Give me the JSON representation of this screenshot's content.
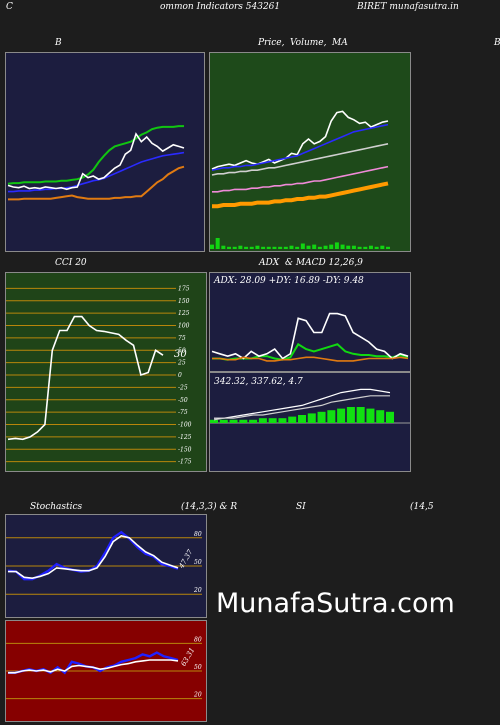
{
  "header": {
    "left": "C",
    "center": "ommon  Indicators 543261",
    "right": "BIRET munafasutra.in"
  },
  "titles": {
    "bb": "B",
    "price_a": "Price,",
    "price_b": "Volume,",
    "price_c": "MA",
    "right_edge": "B",
    "cci": "CCI 20",
    "adx_a": "ADX",
    "adx_b": "& MACD 12,26,9",
    "stoch_a": "Stochastics",
    "stoch_b": "(14,3,3) & R",
    "stoch_c": "SI",
    "stoch_d": "(14,5"
  },
  "readouts": {
    "cci_value": "30",
    "adx_line": "ADX: 28.09  +DY: 16.89  -DY: 9.48",
    "macd_line": "342.32,  337.62,  4.7",
    "stoch_value": "47.37",
    "rsi_value": "63.31"
  },
  "watermark": "MunafaSutra.com",
  "colors": {
    "bb_bg": "#1c1d3f",
    "price_bg": "#1e4a1a",
    "cci_bg": "#1f4418",
    "adx_bg": "#1c1d3f",
    "stoch_bg": "#1c1d3f",
    "rsi_bg": "#860000"
  },
  "chart_data": [
    {
      "type": "line",
      "name": "bollinger",
      "ylim": [
        0,
        100
      ],
      "series": [
        {
          "name": "upper",
          "color": "#11c511",
          "values": [
            22,
            23,
            23,
            24,
            24,
            24,
            24,
            25,
            25,
            25,
            26,
            26,
            27,
            28,
            30,
            34,
            40,
            50,
            58,
            65,
            70,
            72,
            74,
            76,
            80,
            85,
            88,
            92,
            94,
            95,
            95,
            95,
            96,
            96
          ]
        },
        {
          "name": "middle",
          "color": "#2a2aff",
          "values": [
            12,
            12,
            13,
            13,
            13,
            14,
            14,
            15,
            15,
            16,
            16,
            17,
            18,
            20,
            22,
            24,
            26,
            27,
            29,
            32,
            35,
            38,
            41,
            44,
            47,
            50,
            52,
            54,
            56,
            58,
            59,
            60,
            61,
            62
          ]
        },
        {
          "name": "price",
          "color": "#ffffff",
          "values": [
            20,
            18,
            17,
            19,
            16,
            17,
            16,
            18,
            17,
            16,
            17,
            15,
            17,
            18,
            35,
            30,
            32,
            28,
            30,
            36,
            42,
            46,
            60,
            65,
            86,
            76,
            82,
            74,
            70,
            64,
            68,
            72,
            70,
            68
          ]
        },
        {
          "name": "lower",
          "color": "#e07a11",
          "values": [
            2,
            2,
            2,
            3,
            3,
            3,
            3,
            3,
            3,
            4,
            5,
            6,
            7,
            5,
            4,
            3,
            3,
            3,
            3,
            3,
            4,
            4,
            5,
            5,
            6,
            6,
            12,
            18,
            24,
            28,
            34,
            38,
            42,
            44
          ]
        }
      ]
    },
    {
      "type": "line",
      "name": "price_volume_ma",
      "ylim": [
        0,
        100
      ],
      "series": [
        {
          "name": "price",
          "color": "#ffffff",
          "values": [
            45,
            47,
            48,
            49,
            48,
            50,
            52,
            50,
            49,
            51,
            53,
            50,
            52,
            54,
            58,
            57,
            66,
            70,
            66,
            68,
            72,
            85,
            92,
            93,
            88,
            86,
            83,
            84,
            80,
            82,
            84,
            85
          ]
        },
        {
          "name": "ma_fast",
          "color": "#2a2aff",
          "values": [
            44,
            45,
            46,
            46,
            47,
            47,
            48,
            48,
            49,
            50,
            51,
            52,
            53,
            54,
            55,
            56,
            58,
            60,
            62,
            64,
            66,
            68,
            70,
            72,
            74,
            76,
            77,
            78,
            79,
            80,
            81,
            82
          ]
        },
        {
          "name": "ma_mid",
          "color": "#cfcfcf",
          "values": [
            40,
            41,
            41,
            42,
            42,
            43,
            43,
            44,
            44,
            45,
            46,
            46,
            47,
            48,
            49,
            50,
            51,
            52,
            53,
            54,
            55,
            56,
            57,
            58,
            59,
            60,
            61,
            62,
            63,
            64,
            65,
            66
          ]
        },
        {
          "name": "ma_slow",
          "color": "#f08ad8",
          "values": [
            26,
            26,
            27,
            27,
            28,
            28,
            28,
            29,
            29,
            30,
            30,
            31,
            31,
            32,
            32,
            33,
            33,
            34,
            35,
            35,
            36,
            37,
            38,
            39,
            40,
            41,
            42,
            43,
            44,
            45,
            46,
            47
          ]
        },
        {
          "name": "ma_long",
          "color": "#ff9a00",
          "values": [
            14,
            14,
            15,
            15,
            15,
            16,
            16,
            16,
            17,
            17,
            17,
            18,
            18,
            19,
            19,
            20,
            20,
            21,
            21,
            22,
            22,
            23,
            24,
            25,
            26,
            27,
            28,
            29,
            30,
            31,
            32,
            33
          ]
        }
      ],
      "volume": [
        4,
        10,
        3,
        2,
        2,
        3,
        2,
        2,
        3,
        2,
        2,
        2,
        2,
        2,
        3,
        2,
        5,
        3,
        4,
        2,
        3,
        4,
        6,
        4,
        3,
        3,
        2,
        2,
        3,
        2,
        3,
        2
      ]
    },
    {
      "type": "line",
      "name": "cci",
      "ylim": [
        -200,
        200
      ],
      "yticks": [
        175,
        150,
        125,
        100,
        75,
        50,
        25,
        0,
        -25,
        -50,
        -75,
        -100,
        -125,
        -150,
        -175
      ],
      "values": [
        -130,
        -128,
        -130,
        -125,
        -115,
        -100,
        50,
        90,
        90,
        118,
        118,
        100,
        90,
        88,
        85,
        82,
        70,
        60,
        0,
        5,
        50,
        40
      ]
    },
    {
      "type": "line",
      "name": "adx",
      "ylim": [
        0,
        60
      ],
      "series": [
        {
          "name": "adx",
          "color": "#11d911",
          "values": [
            8,
            8,
            7,
            8,
            8,
            8,
            10,
            10,
            8,
            7,
            9,
            20,
            16,
            14,
            16,
            18,
            20,
            14,
            12,
            11,
            11,
            10,
            10,
            9,
            11,
            9
          ]
        },
        {
          "name": "plus_di",
          "color": "#ffffff",
          "values": [
            14,
            12,
            10,
            12,
            8,
            14,
            10,
            12,
            16,
            8,
            12,
            42,
            40,
            30,
            30,
            46,
            46,
            44,
            30,
            26,
            22,
            16,
            14,
            8,
            12,
            10
          ]
        },
        {
          "name": "minus_di",
          "color": "#e07a11",
          "values": [
            8,
            8,
            7,
            7,
            9,
            8,
            8,
            6,
            6,
            7,
            7,
            8,
            9,
            9,
            8,
            7,
            6,
            6,
            6,
            7,
            8,
            8,
            8,
            8,
            9,
            8
          ]
        }
      ]
    },
    {
      "type": "bar",
      "name": "macd",
      "ylim": [
        -10,
        40
      ],
      "macd": [
        3,
        3,
        4,
        5,
        6,
        7,
        8,
        9,
        10,
        11,
        13,
        15,
        17,
        19,
        20,
        21,
        21,
        20,
        19
      ],
      "signal": [
        2,
        3,
        3,
        4,
        5,
        5,
        6,
        7,
        8,
        9,
        10,
        11,
        13,
        14,
        15,
        16,
        17,
        17,
        17
      ],
      "histogram": [
        2,
        2,
        2,
        2,
        2,
        3,
        3,
        3,
        4,
        5,
        6,
        7,
        8,
        9,
        10,
        10,
        9,
        8,
        7
      ]
    },
    {
      "type": "line",
      "name": "stochastics",
      "ylim": [
        0,
        100
      ],
      "yticks": [
        80,
        50,
        20
      ],
      "series": [
        {
          "name": "k",
          "color": "#2020ff",
          "values": [
            45,
            44,
            36,
            36,
            40,
            45,
            52,
            48,
            46,
            44,
            45,
            50,
            64,
            80,
            86,
            79,
            70,
            63,
            60,
            52,
            50,
            47
          ]
        },
        {
          "name": "d",
          "color": "#ffffff",
          "values": [
            44,
            44,
            38,
            37,
            39,
            42,
            48,
            47,
            46,
            45,
            45,
            48,
            60,
            76,
            82,
            80,
            72,
            65,
            61,
            54,
            51,
            48
          ]
        }
      ]
    },
    {
      "type": "line",
      "name": "rsi",
      "ylim": [
        0,
        100
      ],
      "yticks": [
        80,
        50,
        20
      ],
      "series": [
        {
          "name": "rsi",
          "color": "#2020ff",
          "values": [
            48,
            48,
            50,
            52,
            50,
            52,
            48,
            54,
            48,
            60,
            58,
            55,
            54,
            50,
            54,
            56,
            60,
            62,
            64,
            68,
            66,
            70,
            66,
            64,
            62
          ]
        },
        {
          "name": "signal",
          "color": "#ffffff",
          "values": [
            48,
            48,
            50,
            51,
            50,
            51,
            49,
            52,
            50,
            55,
            56,
            55,
            54,
            52,
            53,
            55,
            57,
            58,
            60,
            61,
            62,
            62,
            62,
            62,
            61
          ]
        }
      ]
    }
  ]
}
